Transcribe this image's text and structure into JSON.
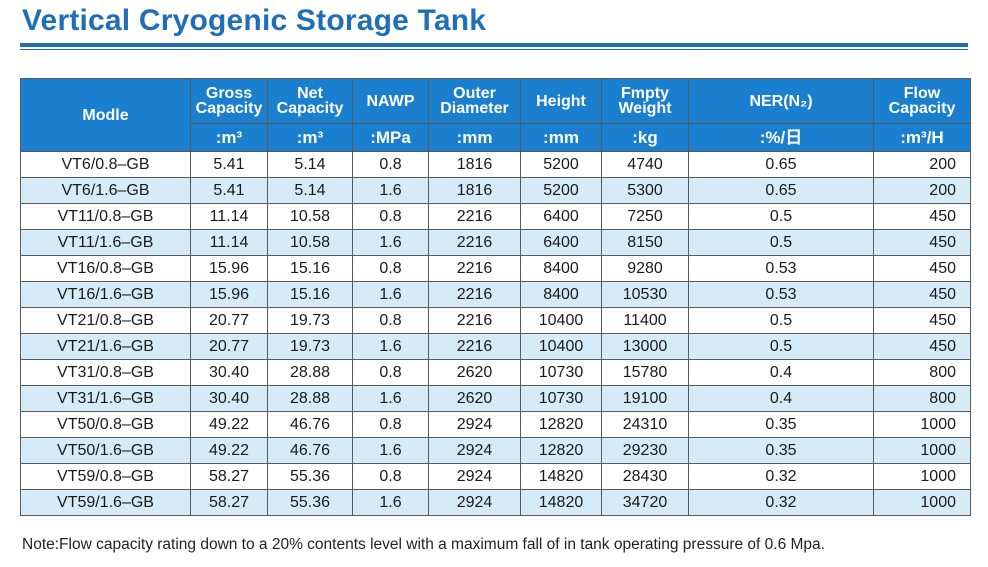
{
  "title": "Vertical Cryogenic Storage Tank",
  "table": {
    "headers": [
      {
        "label": "Modle",
        "unit": ""
      },
      {
        "label": "Gross Capacity",
        "unit": ":m³"
      },
      {
        "label": "Net Capacity",
        "unit": ":m³"
      },
      {
        "label": "NAWP",
        "unit": ":MPa"
      },
      {
        "label": "Outer Diameter",
        "unit": ":mm"
      },
      {
        "label": "Height",
        "unit": ":mm"
      },
      {
        "label": "Fmpty Weight",
        "unit": ":kg"
      },
      {
        "label": "NER(N₂)",
        "unit": ":%/日"
      },
      {
        "label": "Flow Capacity",
        "unit": ":m³/H"
      }
    ],
    "rows": [
      [
        "VT6/0.8–GB",
        "5.41",
        "5.14",
        "0.8",
        "1816",
        "5200",
        "4740",
        "0.65",
        "200"
      ],
      [
        "VT6/1.6–GB",
        "5.41",
        "5.14",
        "1.6",
        "1816",
        "5200",
        "5300",
        "0.65",
        "200"
      ],
      [
        "VT11/0.8–GB",
        "11.14",
        "10.58",
        "0.8",
        "2216",
        "6400",
        "7250",
        "0.5",
        "450"
      ],
      [
        "VT11/1.6–GB",
        "11.14",
        "10.58",
        "1.6",
        "2216",
        "6400",
        "8150",
        "0.5",
        "450"
      ],
      [
        "VT16/0.8–GB",
        "15.96",
        "15.16",
        "0.8",
        "2216",
        "8400",
        "9280",
        "0.53",
        "450"
      ],
      [
        "VT16/1.6–GB",
        "15.96",
        "15.16",
        "1.6",
        "2216",
        "8400",
        "10530",
        "0.53",
        "450"
      ],
      [
        "VT21/0.8–GB",
        "20.77",
        "19.73",
        "0.8",
        "2216",
        "10400",
        "11400",
        "0.5",
        "450"
      ],
      [
        "VT21/1.6–GB",
        "20.77",
        "19.73",
        "1.6",
        "2216",
        "10400",
        "13000",
        "0.5",
        "450"
      ],
      [
        "VT31/0.8–GB",
        "30.40",
        "28.88",
        "0.8",
        "2620",
        "10730",
        "15780",
        "0.4",
        "800"
      ],
      [
        "VT31/1.6–GB",
        "30.40",
        "28.88",
        "1.6",
        "2620",
        "10730",
        "19100",
        "0.4",
        "800"
      ],
      [
        "VT50/0.8–GB",
        "49.22",
        "46.76",
        "0.8",
        "2924",
        "12820",
        "24310",
        "0.35",
        "1000"
      ],
      [
        "VT50/1.6–GB",
        "49.22",
        "46.76",
        "1.6",
        "2924",
        "12820",
        "29230",
        "0.35",
        "1000"
      ],
      [
        "VT59/0.8–GB",
        "58.27",
        "55.36",
        "0.8",
        "2924",
        "14820",
        "28430",
        "0.32",
        "1000"
      ],
      [
        "VT59/1.6–GB",
        "58.27",
        "55.36",
        "1.6",
        "2924",
        "14820",
        "34720",
        "0.32",
        "1000"
      ]
    ]
  },
  "note": "Note:Flow capacity rating down to a 20% contents level with a maximum fall of in tank operating pressure of 0.6 Mpa.",
  "colors": {
    "brand_blue": "#1f6fb8",
    "header_blue": "#1a7fce",
    "row_stripe": "#d5ebf8"
  }
}
